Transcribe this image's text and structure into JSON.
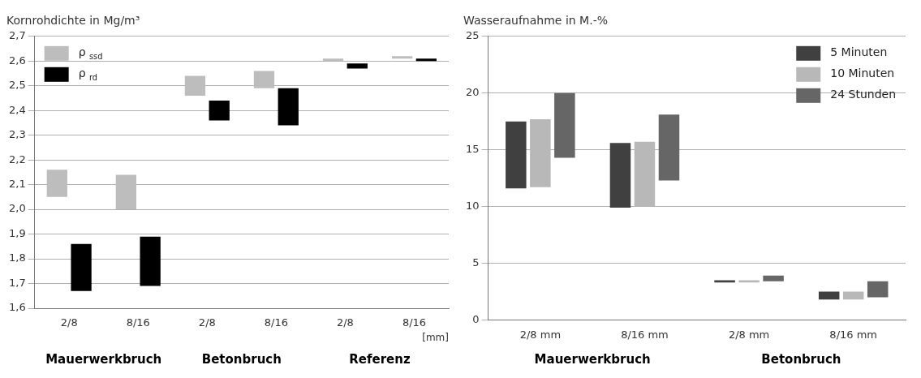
{
  "chart_data": [
    {
      "type": "bar",
      "title": "Kornrohdichte in Mg/m³",
      "xlabel": "[mm]",
      "categories": [
        "2/8",
        "8/16",
        "2/8",
        "8/16",
        "2/8",
        "8/16"
      ],
      "series": [
        {
          "name": "ρ $_{ssd}$",
          "color": "#bdbdbd",
          "base": [
            2.05,
            2.0,
            2.46,
            2.49,
            2.6,
            2.61
          ],
          "values": [
            0.11,
            0.14,
            0.08,
            0.07,
            0.01,
            0.01
          ]
        },
        {
          "name": "ρ $_{rd}$",
          "color": "#000000",
          "base": [
            1.67,
            1.69,
            2.36,
            2.34,
            2.57,
            2.6
          ],
          "values": [
            0.19,
            0.2,
            0.08,
            0.15,
            0.02,
            0.01
          ]
        }
      ],
      "ylim": [
        1.6,
        2.7
      ],
      "yticks": [
        {
          "value": 1.6,
          "label": "1,6"
        },
        {
          "value": 1.7,
          "label": "1,7"
        },
        {
          "value": 1.8,
          "label": "1,8"
        },
        {
          "value": 1.9,
          "label": "1,9"
        },
        {
          "value": 2.0,
          "label": "2,0"
        },
        {
          "value": 2.1,
          "label": "2,1"
        },
        {
          "value": 2.2,
          "label": "2,2"
        },
        {
          "value": 2.3,
          "label": "2,3"
        },
        {
          "value": 2.4,
          "label": "2,4"
        },
        {
          "value": 2.5,
          "label": "2,5"
        },
        {
          "value": 2.6,
          "label": "2,6"
        },
        {
          "value": 2.7,
          "label": "2,7"
        }
      ],
      "grid": "y",
      "legend": "top left",
      "annotations": [
        "Mauerwerkbruch",
        "Betonbruch",
        "Referenz"
      ]
    },
    {
      "type": "bar",
      "title": "Wasseraufnahme in M.-%",
      "categories": [
        "2/8 mm",
        "8/16 mm",
        "2/8 mm",
        "8/16 mm"
      ],
      "series": [
        {
          "name": "5 Minuten",
          "color": "#404040",
          "base": [
            11.6,
            9.9,
            3.3,
            1.8
          ],
          "values": [
            5.9,
            5.7,
            0.2,
            0.7
          ]
        },
        {
          "name": "10 Minuten",
          "color": "#b8b8b8",
          "base": [
            11.7,
            10.0,
            3.3,
            1.8
          ],
          "values": [
            6.0,
            5.7,
            0.2,
            0.7
          ]
        },
        {
          "name": "24 Stunden",
          "color": "#666666",
          "base": [
            14.3,
            12.3,
            3.4,
            2.0
          ],
          "values": [
            5.7,
            5.8,
            0.5,
            1.4
          ]
        }
      ],
      "ylim": [
        0,
        25
      ],
      "yticks": [
        0,
        5,
        10,
        15,
        20,
        25
      ],
      "grid": "y",
      "legend": "top right",
      "annotations": [
        "Mauerwerkbruch",
        "Betonbruch"
      ]
    }
  ]
}
